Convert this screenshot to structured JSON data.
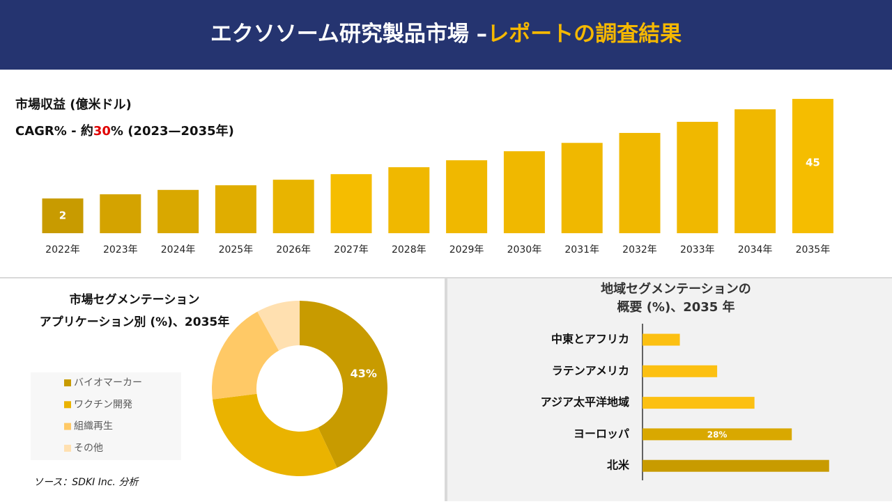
{
  "header": {
    "title": "エクソソーム研究製品市場 –",
    "title_highlight": "レポートの調査結果"
  },
  "source": "ソース：SDKI Inc. 分析",
  "chart_data": [
    {
      "type": "bar",
      "title": "市場収益 (億米ドル)",
      "annotations": [
        "CAGR% - 約",
        "30",
        "% (2023—2035年)"
      ],
      "categories": [
        "2022年",
        "2023年",
        "2024年",
        "2025年",
        "2026年",
        "2027年",
        "2028年",
        "2029年",
        "2030年",
        "2031年",
        "2032年",
        "2033年",
        "2034年",
        "2035年"
      ],
      "values": [
        2,
        3.8,
        5.7,
        7.7,
        10.1,
        12.5,
        15.5,
        18.5,
        22.4,
        26,
        30.3,
        35.1,
        40.5,
        45
      ],
      "value_labels": [
        "2",
        null,
        null,
        null,
        null,
        null,
        null,
        null,
        null,
        null,
        null,
        null,
        null,
        "45"
      ],
      "colors": [
        "#c89b00",
        "#d4a300",
        "#d9a800",
        "#e0ad00",
        "#e8b400",
        "#f5bd00",
        "#f0b800",
        "#f0b800",
        "#f0b800",
        "#f0b800",
        "#f0b800",
        "#f0b800",
        "#f0b800",
        "#f5bd00"
      ],
      "ylim": [
        -13,
        47
      ]
    },
    {
      "type": "donut",
      "title": [
        "市場セグメンテーション",
        "アプリケーション別 (%)、2035年"
      ],
      "categories": [
        "バイオマーカー",
        "ワクチン開発",
        "組織再生",
        "その他"
      ],
      "values": [
        43,
        30,
        19,
        8
      ],
      "value_labels": [
        "43%",
        null,
        null,
        null
      ],
      "colors": [
        "#c89b00",
        "#eab300",
        "#ffc966",
        "#ffe0b0"
      ]
    },
    {
      "type": "hbar",
      "title": [
        "地域セグメンテーションの",
        "概要 (%)、2035 年"
      ],
      "categories": [
        "中東とアフリカ",
        "ラテンアメリカ",
        "アジア太平洋地域",
        "ヨーロッパ",
        "北米"
      ],
      "values": [
        7,
        14,
        21,
        28,
        35
      ],
      "value_labels": [
        null,
        null,
        null,
        "28%",
        null
      ],
      "colors": [
        "#fcc012",
        "#fcc012",
        "#fcc012",
        "#d9a800",
        "#c89b00"
      ],
      "xlim": [
        0,
        40
      ]
    }
  ]
}
